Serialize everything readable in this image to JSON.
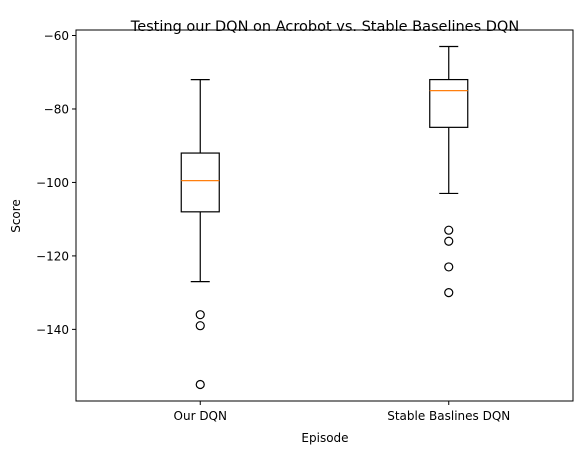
{
  "chart_data": {
    "type": "box",
    "title": "Testing our DQN on Acrobot vs. Stable Baselines DQN",
    "xlabel": "Episode",
    "ylabel": "Score",
    "ylim": [
      -159.5,
      -58.5
    ],
    "yticks": [
      -60,
      -80,
      -100,
      -120,
      -140
    ],
    "grid": false,
    "categories": [
      "Our DQN",
      "Stable Baslines DQN"
    ],
    "boxes": [
      {
        "category": "Our DQN",
        "whisker_low": -127,
        "q1": -108,
        "median": -99.5,
        "q3": -92,
        "whisker_high": -72,
        "outliers": [
          -136,
          -139,
          -155
        ]
      },
      {
        "category": "Stable Baslines DQN",
        "whisker_low": -103,
        "q1": -85,
        "median": -75,
        "q3": -72,
        "whisker_high": -63,
        "outliers": [
          -113,
          -116,
          -123,
          -130
        ]
      }
    ],
    "colors": {
      "box": "#000000",
      "median": "#ff7f0e",
      "outlier": "#000000"
    }
  }
}
